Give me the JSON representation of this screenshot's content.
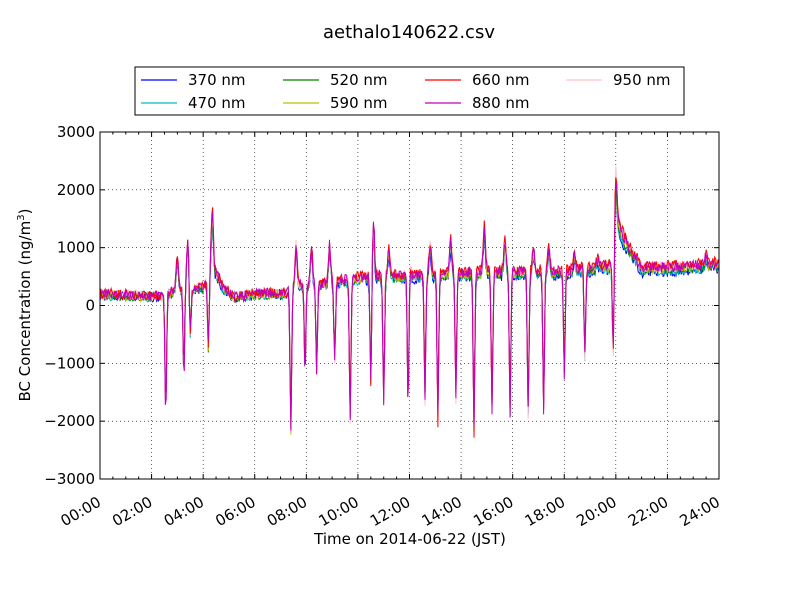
{
  "chart_data": {
    "type": "line",
    "title": "aethalo140622.csv",
    "xlabel": "Time on 2014-06-22 (JST)",
    "ylabel_main": "BC Concentration (ng/m",
    "ylabel_sup": "3",
    "ylabel_close": ")",
    "xlim_hours": [
      0,
      24
    ],
    "ylim": [
      -3000,
      3000
    ],
    "grid": true,
    "legend_position": "above plot, 4 columns",
    "xticks": [
      {
        "hour": 0,
        "label": "00:00"
      },
      {
        "hour": 2,
        "label": "02:00"
      },
      {
        "hour": 4,
        "label": "04:00"
      },
      {
        "hour": 6,
        "label": "06:00"
      },
      {
        "hour": 8,
        "label": "08:00"
      },
      {
        "hour": 10,
        "label": "10:00"
      },
      {
        "hour": 12,
        "label": "12:00"
      },
      {
        "hour": 14,
        "label": "14:00"
      },
      {
        "hour": 16,
        "label": "16:00"
      },
      {
        "hour": 18,
        "label": "18:00"
      },
      {
        "hour": 20,
        "label": "20:00"
      },
      {
        "hour": 22,
        "label": "22:00"
      },
      {
        "hour": 24,
        "label": "24:00"
      }
    ],
    "yticks": [
      {
        "value": 3000,
        "label": "3000"
      },
      {
        "value": 2000,
        "label": "2000"
      },
      {
        "value": 1000,
        "label": "1000"
      },
      {
        "value": 0,
        "label": "0"
      },
      {
        "value": -1000,
        "label": "−1000"
      },
      {
        "value": -2000,
        "label": "−2000"
      },
      {
        "value": -3000,
        "label": "−3000"
      }
    ],
    "series": [
      {
        "name": "370 nm",
        "color": "#0000ff",
        "scale": 0.88,
        "dip_scale": 0.92
      },
      {
        "name": "470 nm",
        "color": "#00bfbf",
        "scale": 0.9,
        "dip_scale": 0.94
      },
      {
        "name": "520 nm",
        "color": "#008000",
        "scale": 0.93,
        "dip_scale": 0.96
      },
      {
        "name": "590 nm",
        "color": "#bfbf00",
        "scale": 0.96,
        "dip_scale": 0.98
      },
      {
        "name": "660 nm",
        "color": "#ff0000",
        "scale": 1.05,
        "dip_scale": 1.0
      },
      {
        "name": "880 nm",
        "color": "#bf00bf",
        "scale": 1.0,
        "dip_scale": 1.06
      },
      {
        "name": "950 nm",
        "color": "#ffc0cb",
        "scale": 1.02,
        "dip_scale": 1.05
      }
    ],
    "baseline_points": [
      [
        0.0,
        200
      ],
      [
        2.5,
        160
      ],
      [
        3.0,
        300
      ],
      [
        4.0,
        300
      ],
      [
        4.4,
        650
      ],
      [
        4.8,
        300
      ],
      [
        5.2,
        150
      ],
      [
        6.0,
        200
      ],
      [
        7.2,
        220
      ],
      [
        7.6,
        350
      ],
      [
        8.6,
        380
      ],
      [
        9.5,
        450
      ],
      [
        10.5,
        500
      ],
      [
        12.0,
        520
      ],
      [
        13.5,
        560
      ],
      [
        15.5,
        580
      ],
      [
        18.0,
        600
      ],
      [
        19.5,
        680
      ],
      [
        20.0,
        700
      ],
      [
        20.1,
        1400
      ],
      [
        20.4,
        1100
      ],
      [
        21.0,
        650
      ],
      [
        22.5,
        680
      ],
      [
        24.0,
        720
      ]
    ],
    "spikes_up": [
      [
        3.0,
        900
      ],
      [
        3.4,
        1200
      ],
      [
        4.35,
        1700
      ],
      [
        7.6,
        1100
      ],
      [
        8.2,
        1000
      ],
      [
        8.9,
        1100
      ],
      [
        10.6,
        1500
      ],
      [
        11.2,
        1000
      ],
      [
        12.0,
        800
      ],
      [
        12.8,
        1100
      ],
      [
        13.6,
        1200
      ],
      [
        14.9,
        1450
      ],
      [
        15.7,
        1200
      ],
      [
        16.8,
        1000
      ],
      [
        17.4,
        1000
      ],
      [
        18.4,
        900
      ],
      [
        19.3,
        800
      ],
      [
        20.0,
        2400
      ],
      [
        23.5,
        900
      ]
    ],
    "spikes_down": [
      [
        2.55,
        -1900
      ],
      [
        3.25,
        -1200
      ],
      [
        3.5,
        -600
      ],
      [
        4.2,
        -800
      ],
      [
        7.4,
        -2200
      ],
      [
        7.95,
        -1200
      ],
      [
        8.4,
        -1200
      ],
      [
        9.1,
        -1000
      ],
      [
        9.7,
        -2100
      ],
      [
        10.5,
        -1500
      ],
      [
        11.0,
        -1800
      ],
      [
        11.95,
        -2000
      ],
      [
        12.6,
        -1700
      ],
      [
        13.1,
        -2050
      ],
      [
        13.8,
        -1700
      ],
      [
        14.5,
        -2350
      ],
      [
        15.2,
        -1900
      ],
      [
        15.9,
        -2000
      ],
      [
        16.6,
        -2000
      ],
      [
        17.2,
        -1800
      ],
      [
        18.0,
        -1300
      ],
      [
        18.8,
        -1000
      ],
      [
        19.9,
        -1000
      ]
    ]
  }
}
